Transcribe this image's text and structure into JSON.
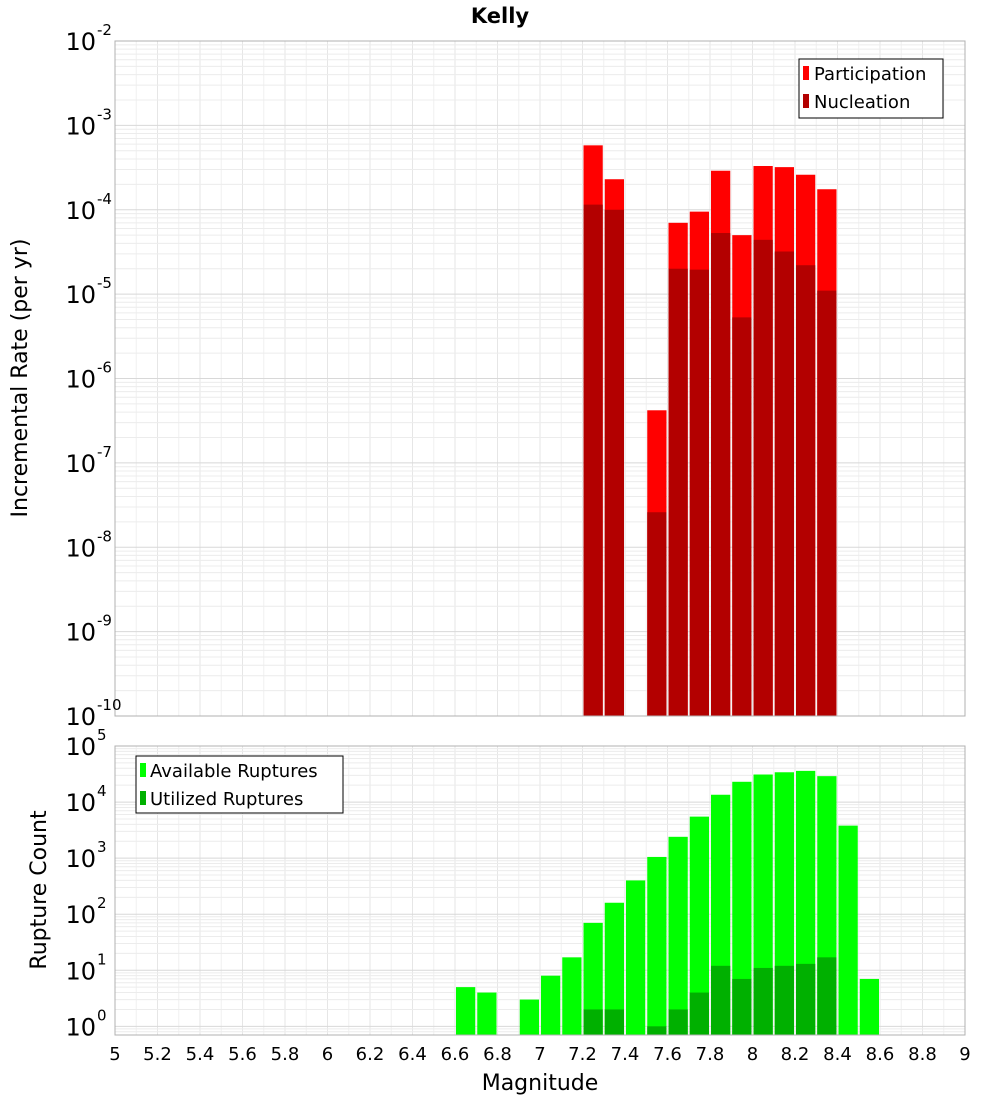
{
  "chart_data": [
    {
      "type": "bar",
      "title": "Kelly",
      "xlabel": "",
      "ylabel": "Incremental Rate (per yr)",
      "xlim": [
        5,
        9
      ],
      "ylim": [
        1e-10,
        0.01
      ],
      "yscale": "log",
      "grid": true,
      "legend_position": "top-right",
      "bin_width": 0.1,
      "y_tick_exponents": [
        -10,
        -9,
        -8,
        -7,
        -6,
        -5,
        -4,
        -3,
        -2
      ],
      "series": [
        {
          "name": "Participation",
          "color": "#ff0000",
          "x": [
            7.25,
            7.35,
            7.55,
            7.65,
            7.75,
            7.85,
            7.95,
            8.05,
            8.15,
            8.25,
            8.35
          ],
          "values": [
            0.00058,
            0.00023,
            4.2e-07,
            7e-05,
            9.5e-05,
            0.00029,
            5e-05,
            0.00033,
            0.00032,
            0.00026,
            0.000175
          ]
        },
        {
          "name": "Nucleation",
          "color": "#b30000",
          "x": [
            7.25,
            7.35,
            7.55,
            7.65,
            7.75,
            7.85,
            7.95,
            8.05,
            8.15,
            8.25,
            8.35
          ],
          "values": [
            0.000115,
            0.0001,
            2.6e-08,
            2e-05,
            1.95e-05,
            5.3e-05,
            5.3e-06,
            4.4e-05,
            3.2e-05,
            2.2e-05,
            1.1e-05
          ]
        }
      ]
    },
    {
      "type": "bar",
      "title": "",
      "xlabel": "Magnitude",
      "ylabel": "Rupture Count",
      "xlim": [
        5,
        9
      ],
      "ylim": [
        0.7,
        100000.0
      ],
      "yscale": "log",
      "grid": true,
      "legend_position": "top-left",
      "bin_width": 0.1,
      "x_ticks": [
        "5",
        "5.2",
        "5.4",
        "5.6",
        "5.8",
        "6",
        "6.2",
        "6.4",
        "6.6",
        "6.8",
        "7",
        "7.2",
        "7.4",
        "7.6",
        "7.8",
        "8",
        "8.2",
        "8.4",
        "8.6",
        "8.8",
        "9"
      ],
      "y_tick_exponents": [
        0,
        1,
        2,
        3,
        4,
        5
      ],
      "series": [
        {
          "name": "Available Ruptures",
          "color": "#00ff00",
          "x": [
            6.65,
            6.75,
            6.95,
            7.05,
            7.15,
            7.25,
            7.35,
            7.45,
            7.55,
            7.65,
            7.75,
            7.85,
            7.95,
            8.05,
            8.15,
            8.25,
            8.35,
            8.45,
            8.55
          ],
          "values": [
            5,
            4,
            3,
            8,
            17,
            70,
            160,
            400,
            1050,
            2400,
            5500,
            13500,
            23000,
            31000,
            34000,
            36000,
            29000,
            3800,
            7
          ]
        },
        {
          "name": "Utilized Ruptures",
          "color": "#00b000",
          "x": [
            7.25,
            7.35,
            7.55,
            7.65,
            7.75,
            7.85,
            7.95,
            8.05,
            8.15,
            8.25,
            8.35
          ],
          "values": [
            2,
            2,
            1,
            2,
            4,
            12,
            7,
            11,
            12,
            13,
            17
          ]
        }
      ]
    }
  ]
}
